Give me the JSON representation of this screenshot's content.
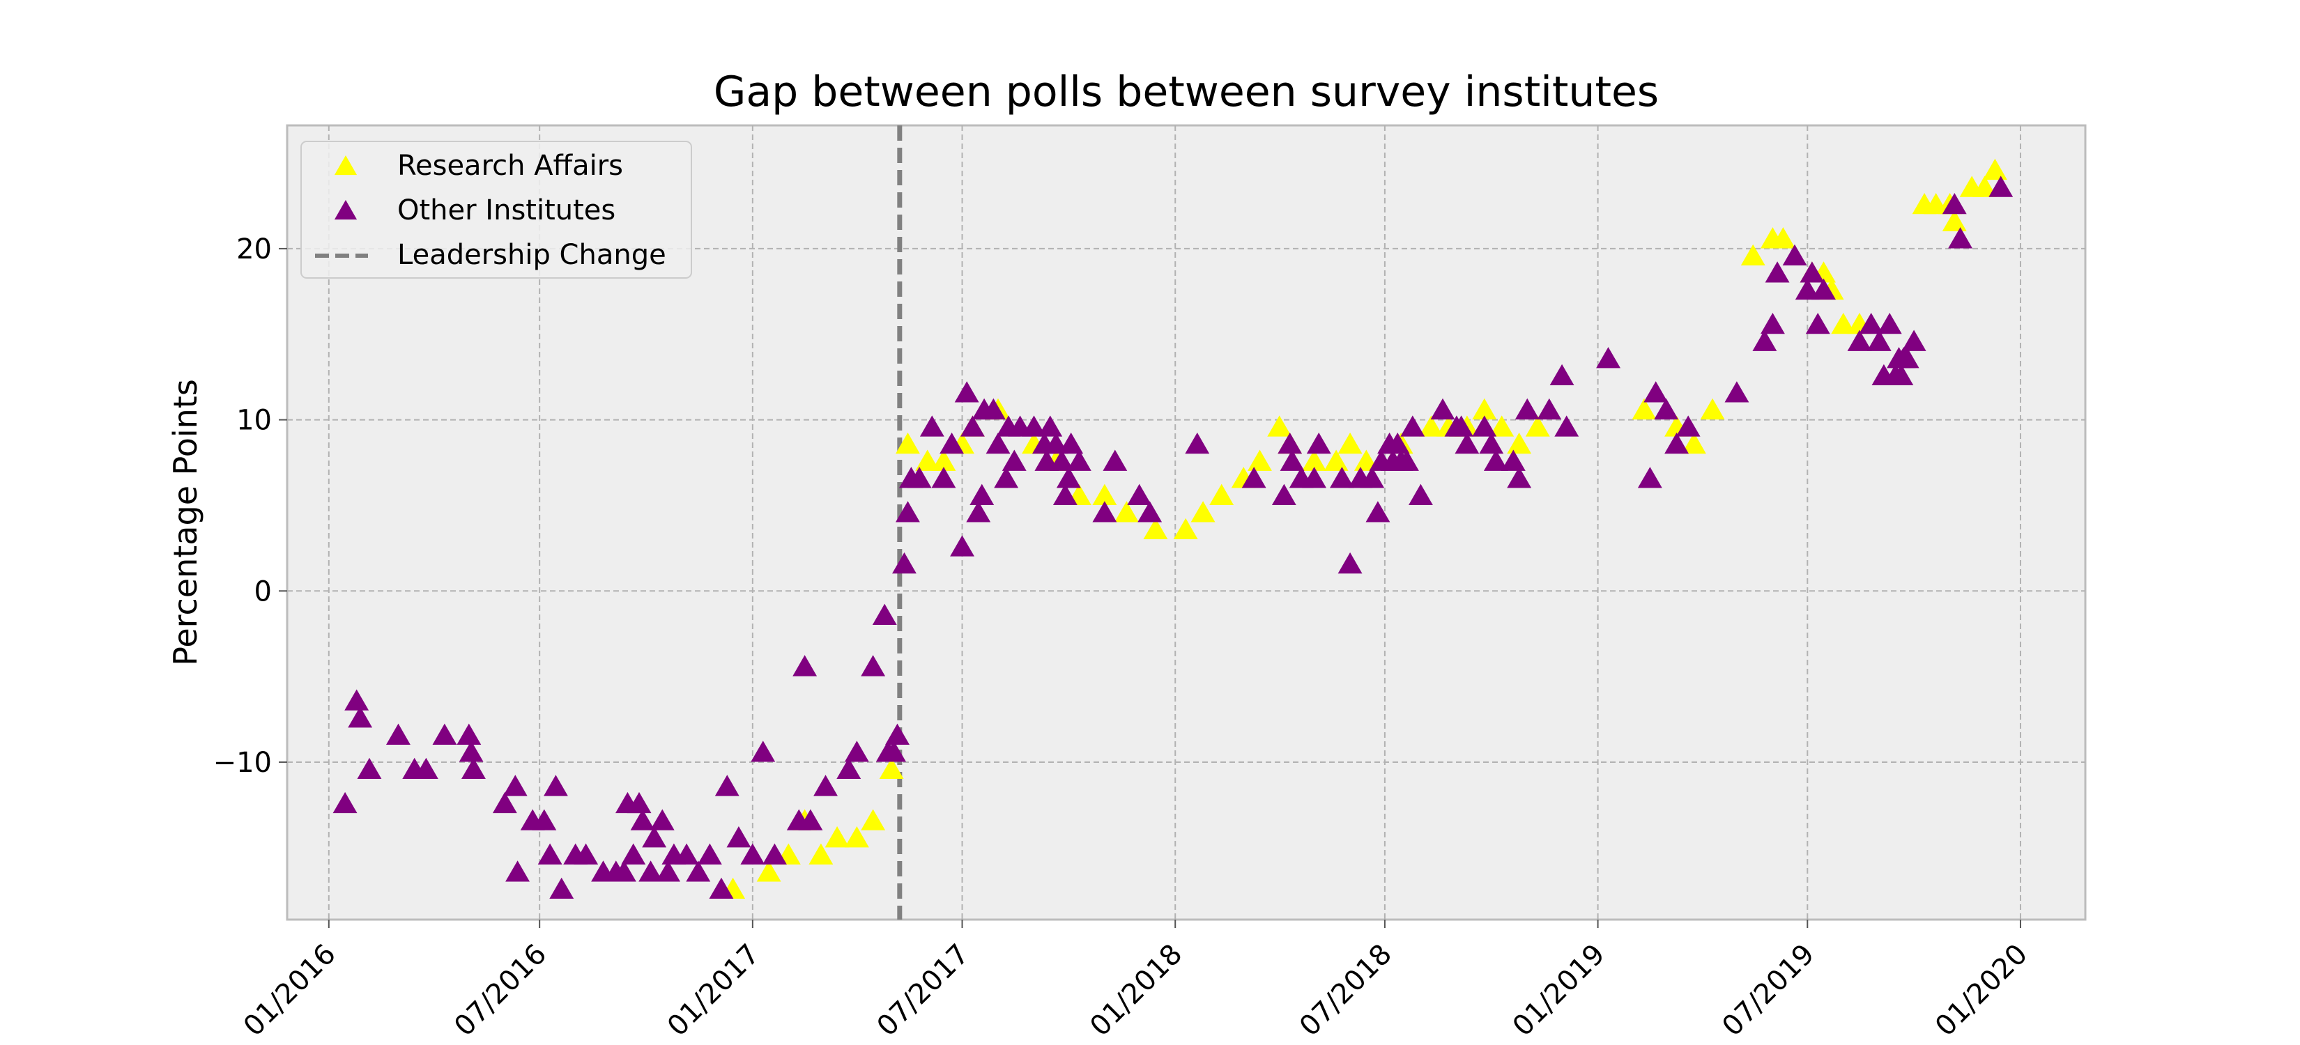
{
  "chart_data": {
    "type": "scatter",
    "title": "Gap between polls between survey institutes",
    "xlabel": "",
    "ylabel": "Percentage Points",
    "x_axis_type": "date",
    "xlim": [
      "2015-11-26",
      "2020-02-26"
    ],
    "ylim": [
      -19.2,
      27.2
    ],
    "x_ticks": [
      {
        "value": "2016-01-01",
        "label": "01/2016"
      },
      {
        "value": "2016-07-01",
        "label": "07/2016"
      },
      {
        "value": "2017-01-01",
        "label": "01/2017"
      },
      {
        "value": "2017-07-01",
        "label": "07/2017"
      },
      {
        "value": "2018-01-01",
        "label": "01/2018"
      },
      {
        "value": "2018-07-01",
        "label": "07/2018"
      },
      {
        "value": "2019-01-01",
        "label": "01/2019"
      },
      {
        "value": "2019-07-01",
        "label": "07/2019"
      },
      {
        "value": "2020-01-01",
        "label": "01/2020"
      }
    ],
    "y_ticks": [
      {
        "value": -10,
        "label": "−10"
      },
      {
        "value": 0,
        "label": "0"
      },
      {
        "value": 10,
        "label": "10"
      },
      {
        "value": 20,
        "label": "20"
      }
    ],
    "grid": true,
    "legend_position": "top-left",
    "vertical_line": {
      "x": "2017-05-08",
      "name": "Leadership Change",
      "color": "#808080",
      "style": "dashed"
    },
    "series": [
      {
        "name": "Research Affairs",
        "color": "#ffff00",
        "marker": "triangle-up",
        "points": [
          [
            "2016-12-15",
            -17.5
          ],
          [
            "2017-01-15",
            -16.5
          ],
          [
            "2017-02-01",
            -15.5
          ],
          [
            "2017-02-15",
            -13.5
          ],
          [
            "2017-03-01",
            -15.5
          ],
          [
            "2017-03-15",
            -14.5
          ],
          [
            "2017-04-01",
            -14.5
          ],
          [
            "2017-04-15",
            -13.5
          ],
          [
            "2017-05-01",
            -10.5
          ],
          [
            "2017-05-15",
            8.5
          ],
          [
            "2017-06-01",
            7.5
          ],
          [
            "2017-06-15",
            7.5
          ],
          [
            "2017-07-01",
            8.5
          ],
          [
            "2017-07-10",
            9.5
          ],
          [
            "2017-08-01",
            10.5
          ],
          [
            "2017-09-01",
            8.5
          ],
          [
            "2017-09-20",
            7.5
          ],
          [
            "2017-10-10",
            5.5
          ],
          [
            "2017-11-01",
            5.5
          ],
          [
            "2017-11-20",
            4.5
          ],
          [
            "2017-12-15",
            3.5
          ],
          [
            "2018-01-10",
            3.5
          ],
          [
            "2018-01-25",
            4.5
          ],
          [
            "2018-02-10",
            5.5
          ],
          [
            "2018-03-01",
            6.5
          ],
          [
            "2018-03-15",
            7.5
          ],
          [
            "2018-04-01",
            9.5
          ],
          [
            "2018-04-10",
            8.5
          ],
          [
            "2018-05-01",
            7.5
          ],
          [
            "2018-05-20",
            7.5
          ],
          [
            "2018-06-01",
            8.5
          ],
          [
            "2018-06-15",
            7.5
          ],
          [
            "2018-07-15",
            8.5
          ],
          [
            "2018-08-10",
            9.5
          ],
          [
            "2018-08-25",
            9.5
          ],
          [
            "2018-09-10",
            9.5
          ],
          [
            "2018-09-25",
            10.5
          ],
          [
            "2018-10-10",
            9.5
          ],
          [
            "2018-10-25",
            8.5
          ],
          [
            "2018-11-10",
            9.5
          ],
          [
            "2019-02-10",
            10.5
          ],
          [
            "2019-03-10",
            9.5
          ],
          [
            "2019-03-25",
            8.5
          ],
          [
            "2019-04-10",
            10.5
          ],
          [
            "2019-05-15",
            19.5
          ],
          [
            "2019-06-01",
            20.5
          ],
          [
            "2019-06-10",
            20.5
          ],
          [
            "2019-07-05",
            18.5
          ],
          [
            "2019-07-15",
            18.5
          ],
          [
            "2019-07-22",
            17.5
          ],
          [
            "2019-08-01",
            15.5
          ],
          [
            "2019-08-15",
            15.5
          ],
          [
            "2019-10-10",
            22.5
          ],
          [
            "2019-10-20",
            22.5
          ],
          [
            "2019-11-01",
            22.5
          ],
          [
            "2019-11-05",
            21.5
          ],
          [
            "2019-11-20",
            23.5
          ],
          [
            "2019-12-01",
            23.5
          ],
          [
            "2019-12-10",
            24.5
          ]
        ]
      },
      {
        "name": "Other Institutes",
        "color": "#800080",
        "marker": "triangle-up",
        "points": [
          [
            "2016-01-15",
            -12.5
          ],
          [
            "2016-01-25",
            -6.5
          ],
          [
            "2016-01-28",
            -7.5
          ],
          [
            "2016-02-05",
            -10.5
          ],
          [
            "2016-03-01",
            -8.5
          ],
          [
            "2016-03-15",
            -10.5
          ],
          [
            "2016-03-25",
            -10.5
          ],
          [
            "2016-04-10",
            -8.5
          ],
          [
            "2016-05-01",
            -8.5
          ],
          [
            "2016-05-03",
            -9.5
          ],
          [
            "2016-05-05",
            -10.5
          ],
          [
            "2016-06-01",
            -12.5
          ],
          [
            "2016-06-10",
            -11.5
          ],
          [
            "2016-06-12",
            -16.5
          ],
          [
            "2016-06-25",
            -13.5
          ],
          [
            "2016-07-05",
            -13.5
          ],
          [
            "2016-07-10",
            -15.5
          ],
          [
            "2016-07-15",
            -11.5
          ],
          [
            "2016-07-20",
            -17.5
          ],
          [
            "2016-08-01",
            -15.5
          ],
          [
            "2016-08-10",
            -15.5
          ],
          [
            "2016-08-25",
            -16.5
          ],
          [
            "2016-09-05",
            -16.5
          ],
          [
            "2016-09-12",
            -16.5
          ],
          [
            "2016-09-15",
            -12.5
          ],
          [
            "2016-09-20",
            -15.5
          ],
          [
            "2016-09-25",
            -12.5
          ],
          [
            "2016-09-28",
            -13.5
          ],
          [
            "2016-10-05",
            -16.5
          ],
          [
            "2016-10-08",
            -14.5
          ],
          [
            "2016-10-15",
            -13.5
          ],
          [
            "2016-10-20",
            -16.5
          ],
          [
            "2016-10-25",
            -15.5
          ],
          [
            "2016-11-05",
            -15.5
          ],
          [
            "2016-11-15",
            -16.5
          ],
          [
            "2016-11-25",
            -15.5
          ],
          [
            "2016-12-05",
            -17.5
          ],
          [
            "2016-12-10",
            -11.5
          ],
          [
            "2016-12-20",
            -14.5
          ],
          [
            "2017-01-01",
            -15.5
          ],
          [
            "2017-01-10",
            -9.5
          ],
          [
            "2017-01-20",
            -15.5
          ],
          [
            "2017-02-10",
            -13.5
          ],
          [
            "2017-02-15",
            -4.5
          ],
          [
            "2017-02-20",
            -13.5
          ],
          [
            "2017-03-05",
            -11.5
          ],
          [
            "2017-03-25",
            -10.5
          ],
          [
            "2017-04-01",
            -9.5
          ],
          [
            "2017-04-15",
            -4.5
          ],
          [
            "2017-04-25",
            -1.5
          ],
          [
            "2017-04-28",
            -9.5
          ],
          [
            "2017-05-03",
            -9.5
          ],
          [
            "2017-05-06",
            -8.5
          ],
          [
            "2017-05-12",
            1.5
          ],
          [
            "2017-05-15",
            4.5
          ],
          [
            "2017-05-18",
            6.5
          ],
          [
            "2017-05-25",
            6.5
          ],
          [
            "2017-06-05",
            9.5
          ],
          [
            "2017-06-15",
            6.5
          ],
          [
            "2017-06-22",
            8.5
          ],
          [
            "2017-07-01",
            2.5
          ],
          [
            "2017-07-05",
            11.5
          ],
          [
            "2017-07-10",
            9.5
          ],
          [
            "2017-07-15",
            4.5
          ],
          [
            "2017-07-18",
            5.5
          ],
          [
            "2017-07-20",
            10.5
          ],
          [
            "2017-07-28",
            10.5
          ],
          [
            "2017-08-01",
            8.5
          ],
          [
            "2017-08-08",
            6.5
          ],
          [
            "2017-08-10",
            9.5
          ],
          [
            "2017-08-15",
            7.5
          ],
          [
            "2017-08-20",
            9.5
          ],
          [
            "2017-09-01",
            9.5
          ],
          [
            "2017-09-10",
            8.5
          ],
          [
            "2017-09-12",
            7.5
          ],
          [
            "2017-09-15",
            9.5
          ],
          [
            "2017-09-20",
            8.5
          ],
          [
            "2017-09-25",
            7.5
          ],
          [
            "2017-09-28",
            5.5
          ],
          [
            "2017-10-01",
            6.5
          ],
          [
            "2017-10-03",
            8.5
          ],
          [
            "2017-10-10",
            7.5
          ],
          [
            "2017-11-01",
            4.5
          ],
          [
            "2017-11-10",
            7.5
          ],
          [
            "2017-12-01",
            5.5
          ],
          [
            "2017-12-10",
            4.5
          ],
          [
            "2018-01-20",
            8.5
          ],
          [
            "2018-03-10",
            6.5
          ],
          [
            "2018-04-05",
            5.5
          ],
          [
            "2018-04-10",
            8.5
          ],
          [
            "2018-04-12",
            7.5
          ],
          [
            "2018-04-20",
            6.5
          ],
          [
            "2018-05-01",
            6.5
          ],
          [
            "2018-05-05",
            8.5
          ],
          [
            "2018-05-25",
            6.5
          ],
          [
            "2018-06-01",
            1.5
          ],
          [
            "2018-06-10",
            6.5
          ],
          [
            "2018-06-20",
            6.5
          ],
          [
            "2018-06-25",
            4.5
          ],
          [
            "2018-06-28",
            7.5
          ],
          [
            "2018-07-05",
            8.5
          ],
          [
            "2018-07-08",
            7.5
          ],
          [
            "2018-07-12",
            8.5
          ],
          [
            "2018-07-15",
            7.5
          ],
          [
            "2018-07-20",
            7.5
          ],
          [
            "2018-07-25",
            9.5
          ],
          [
            "2018-08-01",
            5.5
          ],
          [
            "2018-08-20",
            10.5
          ],
          [
            "2018-09-01",
            9.5
          ],
          [
            "2018-09-05",
            9.5
          ],
          [
            "2018-09-10",
            8.5
          ],
          [
            "2018-09-25",
            9.5
          ],
          [
            "2018-10-01",
            8.5
          ],
          [
            "2018-10-05",
            7.5
          ],
          [
            "2018-10-20",
            7.5
          ],
          [
            "2018-10-25",
            6.5
          ],
          [
            "2018-11-01",
            10.5
          ],
          [
            "2018-11-20",
            10.5
          ],
          [
            "2018-12-01",
            12.5
          ],
          [
            "2018-12-05",
            9.5
          ],
          [
            "2019-01-10",
            13.5
          ],
          [
            "2019-02-15",
            6.5
          ],
          [
            "2019-02-20",
            11.5
          ],
          [
            "2019-03-01",
            10.5
          ],
          [
            "2019-03-10",
            8.5
          ],
          [
            "2019-03-20",
            9.5
          ],
          [
            "2019-05-01",
            11.5
          ],
          [
            "2019-05-25",
            14.5
          ],
          [
            "2019-06-01",
            15.5
          ],
          [
            "2019-06-05",
            18.5
          ],
          [
            "2019-06-20",
            19.5
          ],
          [
            "2019-07-01",
            17.5
          ],
          [
            "2019-07-05",
            18.5
          ],
          [
            "2019-07-10",
            15.5
          ],
          [
            "2019-07-15",
            17.5
          ],
          [
            "2019-08-15",
            14.5
          ],
          [
            "2019-08-25",
            15.5
          ],
          [
            "2019-09-01",
            14.5
          ],
          [
            "2019-09-05",
            12.5
          ],
          [
            "2019-09-10",
            15.5
          ],
          [
            "2019-09-15",
            12.5
          ],
          [
            "2019-09-18",
            13.5
          ],
          [
            "2019-09-20",
            12.5
          ],
          [
            "2019-09-22",
            13.5
          ],
          [
            "2019-09-25",
            13.5
          ],
          [
            "2019-10-01",
            14.5
          ],
          [
            "2019-11-05",
            22.5
          ],
          [
            "2019-11-10",
            20.5
          ],
          [
            "2019-12-15",
            23.5
          ]
        ]
      }
    ]
  }
}
